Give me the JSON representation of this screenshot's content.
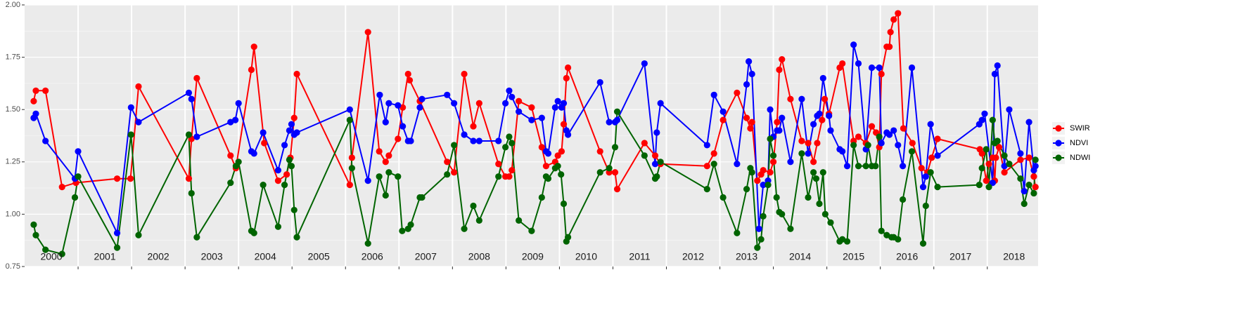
{
  "chart_data": {
    "type": "line",
    "xlim": [
      2000,
      2018.95
    ],
    "ylim": [
      0.75,
      2.0
    ],
    "yticks": [
      {
        "value": 0.75,
        "label": "0.75"
      },
      {
        "value": 1.0,
        "label": "1.00"
      },
      {
        "value": 1.25,
        "label": "1.25"
      },
      {
        "value": 1.5,
        "label": "1.50"
      },
      {
        "value": 1.75,
        "label": "1.75"
      },
      {
        "value": 2.0,
        "label": "2.00"
      }
    ],
    "xticks": [
      2001,
      2002,
      2003,
      2004,
      2005,
      2006,
      2007,
      2008,
      2009,
      2010,
      2011,
      2012,
      2013,
      2014,
      2015,
      2016,
      2017,
      2018
    ],
    "year_labels": [
      {
        "value": 2000.5,
        "label": "2000"
      },
      {
        "value": 2001.5,
        "label": "2001"
      },
      {
        "value": 2002.5,
        "label": "2002"
      },
      {
        "value": 2003.5,
        "label": "2003"
      },
      {
        "value": 2004.5,
        "label": "2004"
      },
      {
        "value": 2005.5,
        "label": "2005"
      },
      {
        "value": 2006.5,
        "label": "2006"
      },
      {
        "value": 2007.5,
        "label": "2007"
      },
      {
        "value": 2008.5,
        "label": "2008"
      },
      {
        "value": 2009.5,
        "label": "2009"
      },
      {
        "value": 2010.5,
        "label": "2010"
      },
      {
        "value": 2011.5,
        "label": "2011"
      },
      {
        "value": 2012.5,
        "label": "2012"
      },
      {
        "value": 2013.5,
        "label": "2013"
      },
      {
        "value": 2014.5,
        "label": "2014"
      },
      {
        "value": 2015.5,
        "label": "2015"
      },
      {
        "value": 2016.5,
        "label": "2016"
      },
      {
        "value": 2017.5,
        "label": "2017"
      },
      {
        "value": 2018.5,
        "label": "2018"
      }
    ],
    "grid": true,
    "legend": "right",
    "series": [
      {
        "name": "SWIR",
        "color": "#ff0000",
        "x": [
          2000.17,
          2000.21,
          2000.39,
          2000.7,
          2000.96,
          2001.73,
          2001.98,
          2002.13,
          2003.07,
          2003.12,
          2003.22,
          2003.85,
          2003.95,
          2004.24,
          2004.29,
          2004.48,
          2004.74,
          2004.9,
          2004.97,
          2005.04,
          2005.09,
          2006.08,
          2006.12,
          2006.42,
          2006.63,
          2006.75,
          2006.81,
          2006.98,
          2007.07,
          2007.17,
          2007.2,
          2007.39,
          2007.9,
          2008.03,
          2008.22,
          2008.39,
          2008.5,
          2008.86,
          2008.99,
          2009.06,
          2009.11,
          2009.24,
          2009.48,
          2009.67,
          2009.75,
          2009.92,
          2009.97,
          2010.04,
          2010.08,
          2010.13,
          2010.16,
          2010.76,
          2010.93,
          2011.04,
          2011.08,
          2011.59,
          2011.79,
          2011.89,
          2012.76,
          2012.89,
          2013.06,
          2013.32,
          2013.5,
          2013.57,
          2013.6,
          2013.7,
          2013.77,
          2013.81,
          2013.94,
          2014.0,
          2014.07,
          2014.11,
          2014.16,
          2014.32,
          2014.53,
          2014.65,
          2014.75,
          2014.82,
          2014.91,
          2014.96,
          2015.04,
          2015.24,
          2015.29,
          2015.5,
          2015.59,
          2015.73,
          2015.84,
          2015.92,
          2015.98,
          2016.02,
          2016.12,
          2016.17,
          2016.19,
          2016.25,
          2016.33,
          2016.43,
          2016.6,
          2016.77,
          2016.88,
          2016.96,
          2017.07,
          2017.86,
          2017.9,
          2017.98,
          2018.03,
          2018.1,
          2018.14,
          2018.16,
          2018.22,
          2018.32,
          2018.62,
          2018.78,
          2018.87,
          2018.9
        ],
        "values": [
          1.54,
          1.59,
          1.59,
          1.13,
          1.15,
          1.17,
          1.17,
          1.61,
          1.17,
          1.36,
          1.65,
          1.28,
          1.22,
          1.69,
          1.8,
          1.34,
          1.16,
          1.19,
          1.27,
          1.46,
          1.67,
          1.14,
          1.27,
          1.87,
          1.3,
          1.25,
          1.28,
          1.36,
          1.51,
          1.67,
          1.64,
          1.54,
          1.25,
          1.2,
          1.67,
          1.42,
          1.53,
          1.24,
          1.18,
          1.18,
          1.21,
          1.54,
          1.51,
          1.32,
          1.23,
          1.25,
          1.28,
          1.3,
          1.43,
          1.65,
          1.7,
          1.3,
          1.2,
          1.2,
          1.12,
          1.34,
          1.28,
          1.24,
          1.23,
          1.29,
          1.45,
          1.58,
          1.46,
          1.41,
          1.44,
          1.16,
          1.19,
          1.21,
          1.2,
          1.25,
          1.44,
          1.69,
          1.74,
          1.55,
          1.35,
          1.34,
          1.25,
          1.34,
          1.45,
          1.55,
          1.48,
          1.7,
          1.72,
          1.35,
          1.37,
          1.34,
          1.42,
          1.39,
          1.32,
          1.67,
          1.8,
          1.8,
          1.87,
          1.93,
          1.96,
          1.41,
          1.34,
          1.22,
          1.2,
          1.27,
          1.36,
          1.31,
          1.29,
          1.16,
          1.24,
          1.27,
          1.16,
          1.27,
          1.32,
          1.2,
          1.26,
          1.27,
          1.18,
          1.13
        ]
      },
      {
        "name": "NDVI",
        "color": "#0000ff",
        "x": [
          2000.17,
          2000.21,
          2000.39,
          2000.94,
          2001.0,
          2001.73,
          2001.99,
          2002.13,
          2003.07,
          2003.12,
          2003.22,
          2003.85,
          2003.94,
          2004.0,
          2004.24,
          2004.29,
          2004.46,
          2004.74,
          2004.86,
          2004.95,
          2004.99,
          2005.04,
          2005.09,
          2006.08,
          2006.42,
          2006.64,
          2006.75,
          2006.81,
          2006.98,
          2007.07,
          2007.17,
          2007.22,
          2007.39,
          2007.43,
          2007.9,
          2008.03,
          2008.22,
          2008.39,
          2008.5,
          2008.86,
          2008.99,
          2009.06,
          2009.11,
          2009.24,
          2009.48,
          2009.67,
          2009.75,
          2009.79,
          2009.92,
          2009.97,
          2010.04,
          2010.08,
          2010.13,
          2010.16,
          2010.76,
          2010.93,
          2011.04,
          2011.08,
          2011.59,
          2011.79,
          2011.82,
          2011.89,
          2012.76,
          2012.89,
          2013.06,
          2013.32,
          2013.5,
          2013.54,
          2013.6,
          2013.73,
          2013.81,
          2013.9,
          2013.94,
          2014.0,
          2014.07,
          2014.11,
          2014.16,
          2014.32,
          2014.53,
          2014.65,
          2014.75,
          2014.82,
          2014.86,
          2014.93,
          2015.04,
          2015.07,
          2015.24,
          2015.29,
          2015.38,
          2015.5,
          2015.59,
          2015.73,
          2015.84,
          2015.98,
          2016.02,
          2016.12,
          2016.17,
          2016.25,
          2016.33,
          2016.42,
          2016.59,
          2016.8,
          2016.85,
          2016.94,
          2017.07,
          2017.85,
          2017.9,
          2017.95,
          2018.1,
          2018.14,
          2018.19,
          2018.32,
          2018.41,
          2018.62,
          2018.69,
          2018.78,
          2018.87,
          2018.9
        ],
        "values": [
          1.46,
          1.48,
          1.35,
          1.17,
          1.3,
          0.91,
          1.51,
          1.44,
          1.58,
          1.55,
          1.37,
          1.44,
          1.45,
          1.53,
          1.3,
          1.29,
          1.39,
          1.21,
          1.33,
          1.4,
          1.43,
          1.38,
          1.39,
          1.5,
          1.16,
          1.57,
          1.44,
          1.53,
          1.52,
          1.42,
          1.35,
          1.35,
          1.51,
          1.55,
          1.57,
          1.53,
          1.38,
          1.35,
          1.35,
          1.35,
          1.53,
          1.59,
          1.56,
          1.49,
          1.45,
          1.46,
          1.3,
          1.29,
          1.51,
          1.54,
          1.51,
          1.53,
          1.4,
          1.38,
          1.63,
          1.44,
          1.44,
          1.45,
          1.72,
          1.24,
          1.39,
          1.53,
          1.33,
          1.57,
          1.49,
          1.24,
          1.62,
          1.73,
          1.67,
          0.93,
          1.14,
          1.16,
          1.5,
          1.37,
          1.4,
          1.4,
          1.46,
          1.25,
          1.55,
          1.29,
          1.43,
          1.47,
          1.48,
          1.65,
          1.47,
          1.4,
          1.31,
          1.3,
          1.23,
          1.81,
          1.72,
          1.31,
          1.7,
          1.7,
          1.34,
          1.39,
          1.38,
          1.4,
          1.33,
          1.23,
          1.7,
          1.13,
          1.18,
          1.43,
          1.28,
          1.43,
          1.45,
          1.48,
          1.15,
          1.67,
          1.71,
          1.23,
          1.5,
          1.29,
          1.11,
          1.44,
          1.21,
          1.23
        ]
      },
      {
        "name": "NDWI",
        "color": "#006400",
        "x": [
          2000.17,
          2000.21,
          2000.39,
          2000.7,
          2000.94,
          2001.0,
          2001.73,
          2001.99,
          2002.13,
          2003.07,
          2003.12,
          2003.22,
          2003.85,
          2003.95,
          2004.0,
          2004.24,
          2004.29,
          2004.46,
          2004.74,
          2004.86,
          2004.95,
          2004.99,
          2005.04,
          2005.09,
          2006.08,
          2006.12,
          2006.42,
          2006.63,
          2006.75,
          2006.81,
          2006.98,
          2007.06,
          2007.17,
          2007.22,
          2007.39,
          2007.43,
          2007.9,
          2008.03,
          2008.22,
          2008.39,
          2008.5,
          2008.86,
          2008.99,
          2009.06,
          2009.11,
          2009.24,
          2009.48,
          2009.67,
          2009.75,
          2009.79,
          2009.92,
          2009.97,
          2010.03,
          2010.08,
          2010.13,
          2010.16,
          2010.76,
          2010.93,
          2011.04,
          2011.08,
          2011.59,
          2011.79,
          2011.82,
          2011.89,
          2012.76,
          2012.89,
          2013.06,
          2013.32,
          2013.5,
          2013.57,
          2013.6,
          2013.7,
          2013.77,
          2013.81,
          2013.9,
          2013.94,
          2014.0,
          2014.06,
          2014.11,
          2014.16,
          2014.32,
          2014.53,
          2014.65,
          2014.75,
          2014.8,
          2014.86,
          2014.93,
          2014.97,
          2015.07,
          2015.24,
          2015.29,
          2015.38,
          2015.5,
          2015.59,
          2015.73,
          2015.77,
          2015.84,
          2015.91,
          2015.98,
          2016.02,
          2016.12,
          2016.21,
          2016.25,
          2016.33,
          2016.42,
          2016.59,
          2016.8,
          2016.85,
          2016.94,
          2017.07,
          2017.85,
          2017.9,
          2017.98,
          2018.03,
          2018.1,
          2018.14,
          2018.19,
          2018.32,
          2018.41,
          2018.62,
          2018.69,
          2018.78,
          2018.87,
          2018.9
        ],
        "values": [
          0.95,
          0.9,
          0.83,
          0.81,
          1.08,
          1.18,
          0.84,
          1.38,
          0.9,
          1.38,
          1.1,
          0.89,
          1.15,
          1.23,
          1.25,
          0.92,
          0.91,
          1.14,
          0.94,
          1.14,
          1.26,
          1.23,
          1.02,
          0.89,
          1.45,
          1.22,
          0.86,
          1.18,
          1.09,
          1.2,
          1.18,
          0.92,
          0.93,
          0.95,
          1.08,
          1.08,
          1.19,
          1.33,
          0.93,
          1.04,
          0.97,
          1.18,
          1.32,
          1.37,
          1.34,
          0.97,
          0.92,
          1.08,
          1.18,
          1.17,
          1.22,
          1.23,
          1.19,
          1.05,
          0.87,
          0.89,
          1.2,
          1.22,
          1.32,
          1.49,
          1.28,
          1.17,
          1.18,
          1.25,
          1.12,
          1.24,
          1.08,
          0.91,
          1.12,
          1.22,
          1.2,
          0.84,
          0.88,
          0.99,
          1.14,
          1.36,
          1.28,
          1.08,
          1.01,
          1.0,
          0.93,
          1.29,
          1.08,
          1.2,
          1.17,
          1.05,
          1.2,
          1.0,
          0.96,
          0.87,
          0.88,
          0.87,
          1.33,
          1.23,
          1.23,
          1.33,
          1.23,
          1.23,
          1.37,
          0.92,
          0.9,
          0.89,
          0.89,
          0.88,
          1.07,
          1.3,
          0.86,
          1.04,
          1.2,
          1.13,
          1.14,
          1.22,
          1.31,
          1.13,
          1.45,
          1.34,
          1.35,
          1.28,
          1.24,
          1.17,
          1.05,
          1.14,
          1.1,
          1.26
        ]
      }
    ]
  }
}
